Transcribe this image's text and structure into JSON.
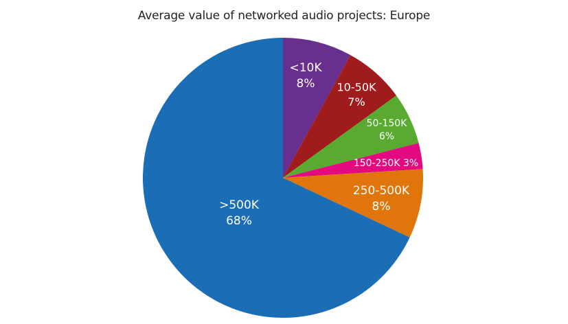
{
  "chart_data": {
    "type": "pie",
    "title": "Average value of networked audio projects: Europe",
    "start": "12 o'clock",
    "direction": "clockwise",
    "slices": [
      {
        "category": "<10K",
        "value": 8,
        "label": "8%",
        "color": "#682f8f"
      },
      {
        "category": "10-50K",
        "value": 7,
        "label": "7%",
        "color": "#a01c1c"
      },
      {
        "category": "50-150K",
        "value": 6,
        "label": "6%",
        "color": "#58ab30"
      },
      {
        "category": "150-250K",
        "value": 3,
        "label": "3%",
        "color": "#e3097e"
      },
      {
        "category": "250-500K",
        "value": 8,
        "label": "8%",
        "color": "#e0760b"
      },
      {
        "category": ">500K",
        "value": 68,
        "label": "68%",
        "color": "#1b6eb6"
      }
    ]
  }
}
